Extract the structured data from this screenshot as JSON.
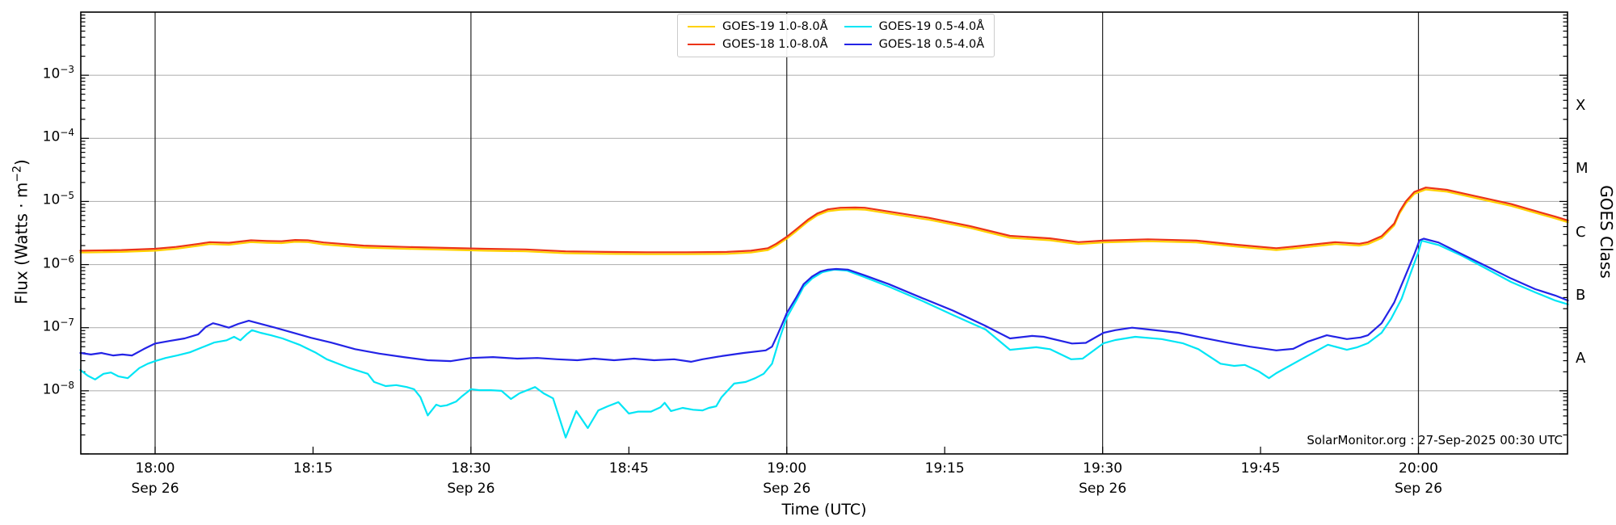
{
  "labels": {
    "y_axis": {
      "pre": "Flux (Watts · m",
      "sup": "−2",
      "post": ")"
    },
    "x_axis": "Time (UTC)",
    "right_axis": "GOES Class",
    "watermark": "SolarMonitor.org : 27-Sep-2025 00:30 UTC"
  },
  "colors": {
    "goes19_long": "#ffd100",
    "goes18_long": "#ec3317",
    "goes19_short": "#00e5f5",
    "goes18_short": "#2323e6",
    "h_grid": "#b5b5b5",
    "v_grid": "#222222",
    "frame": "#000000"
  },
  "legend": {
    "items": [
      {
        "label": "GOES-19 1.0-8.0Å",
        "series": "goes19_long"
      },
      {
        "label": "GOES-18 1.0-8.0Å",
        "series": "goes18_long"
      },
      {
        "label": "GOES-19 0.5-4.0Å",
        "series": "goes19_short"
      },
      {
        "label": "GOES-18 0.5-4.0Å",
        "series": "goes18_short"
      }
    ]
  },
  "axes": {
    "y_tick_exponents": [
      -3,
      -4,
      -5,
      -6,
      -7,
      -8
    ],
    "y_log_range": [
      -2,
      -9
    ],
    "x_range_minutes_from_1800": [
      -7.06,
      134.16
    ],
    "x_ticks": [
      {
        "t": 0,
        "label": "18:00",
        "date": "Sep 26"
      },
      {
        "t": 15,
        "label": "18:15"
      },
      {
        "t": 30,
        "label": "18:30",
        "date": "Sep 26"
      },
      {
        "t": 45,
        "label": "18:45"
      },
      {
        "t": 60,
        "label": "19:00",
        "date": "Sep 26"
      },
      {
        "t": 75,
        "label": "19:15"
      },
      {
        "t": 90,
        "label": "19:30",
        "date": "Sep 26"
      },
      {
        "t": 105,
        "label": "19:45"
      },
      {
        "t": 120,
        "label": "20:00",
        "date": "Sep 26"
      }
    ],
    "goes_class_letters": [
      {
        "letter": "X",
        "log_center": -3.5
      },
      {
        "letter": "M",
        "log_center": -4.5
      },
      {
        "letter": "C",
        "log_center": -5.5
      },
      {
        "letter": "B",
        "log_center": -6.5
      },
      {
        "letter": "A",
        "log_center": -7.5
      }
    ]
  },
  "chart_data": {
    "type": "line",
    "title": "",
    "xlabel": "Time (UTC)",
    "ylabel": "Flux (Watts · m^-2)",
    "x_unit": "minutes after 18:00 UTC, Sep 26 2025",
    "y_unit": "log10 of X-ray flux (W m^-2)",
    "x_range": [
      -7.06,
      134.16
    ],
    "y_log_range": [
      -2,
      -9
    ],
    "grid": {
      "horizontal": "per decade",
      "vertical": "every 30 min"
    },
    "legend_position": "upper center",
    "series": [
      {
        "name": "GOES-19 1.0-8.0Å",
        "color_key": "goes19_long",
        "follows": "GOES-18 1.0-8.0Å",
        "offset_log": -0.03
      },
      {
        "name": "GOES-18 1.0-8.0Å",
        "color_key": "goes18_long",
        "points": [
          [
            -7.1,
            -5.78
          ],
          [
            -3.2,
            -5.77
          ],
          [
            0,
            -5.75
          ],
          [
            2,
            -5.72
          ],
          [
            4.2,
            -5.67
          ],
          [
            5.2,
            -5.645
          ],
          [
            7,
            -5.655
          ],
          [
            9.1,
            -5.615
          ],
          [
            10.6,
            -5.625
          ],
          [
            12,
            -5.63
          ],
          [
            13.3,
            -5.61
          ],
          [
            14.5,
            -5.615
          ],
          [
            16,
            -5.65
          ],
          [
            19.8,
            -5.7
          ],
          [
            23.6,
            -5.72
          ],
          [
            27.5,
            -5.735
          ],
          [
            31.3,
            -5.75
          ],
          [
            35.2,
            -5.76
          ],
          [
            39,
            -5.79
          ],
          [
            42.8,
            -5.8
          ],
          [
            46.7,
            -5.805
          ],
          [
            50.5,
            -5.805
          ],
          [
            54.3,
            -5.8
          ],
          [
            56.6,
            -5.78
          ],
          [
            58.2,
            -5.74
          ],
          [
            59,
            -5.67
          ],
          [
            60,
            -5.56
          ],
          [
            60.9,
            -5.44
          ],
          [
            62,
            -5.29
          ],
          [
            62.9,
            -5.19
          ],
          [
            63.9,
            -5.125
          ],
          [
            65.1,
            -5.1
          ],
          [
            66.5,
            -5.095
          ],
          [
            67.4,
            -5.1
          ],
          [
            69.7,
            -5.16
          ],
          [
            73.5,
            -5.26
          ],
          [
            77.4,
            -5.39
          ],
          [
            81.2,
            -5.545
          ],
          [
            85,
            -5.585
          ],
          [
            87.7,
            -5.645
          ],
          [
            90.1,
            -5.62
          ],
          [
            94.3,
            -5.6
          ],
          [
            98.9,
            -5.62
          ],
          [
            102.7,
            -5.685
          ],
          [
            106.5,
            -5.74
          ],
          [
            108.1,
            -5.715
          ],
          [
            112.1,
            -5.645
          ],
          [
            114.4,
            -5.67
          ],
          [
            115.2,
            -5.645
          ],
          [
            116.5,
            -5.55
          ],
          [
            117.7,
            -5.35
          ],
          [
            118.2,
            -5.16
          ],
          [
            118.8,
            -5.0
          ],
          [
            119.6,
            -4.85
          ],
          [
            120.7,
            -4.78
          ],
          [
            122.7,
            -4.815
          ],
          [
            124.2,
            -4.87
          ],
          [
            126.5,
            -4.955
          ],
          [
            128.8,
            -5.04
          ],
          [
            131.1,
            -5.15
          ],
          [
            133,
            -5.24
          ],
          [
            134.2,
            -5.3
          ]
        ]
      },
      {
        "name": "GOES-19 0.5-4.0Å",
        "color_key": "goes19_short",
        "points": [
          [
            -7.1,
            -7.67
          ],
          [
            -6.4,
            -7.76
          ],
          [
            -5.7,
            -7.82
          ],
          [
            -4.9,
            -7.73
          ],
          [
            -4.2,
            -7.71
          ],
          [
            -3.5,
            -7.77
          ],
          [
            -2.6,
            -7.8
          ],
          [
            -1.5,
            -7.64
          ],
          [
            -0.7,
            -7.57
          ],
          [
            0,
            -7.53
          ],
          [
            1,
            -7.48
          ],
          [
            2.1,
            -7.44
          ],
          [
            3.3,
            -7.39
          ],
          [
            4.5,
            -7.31
          ],
          [
            5.6,
            -7.235
          ],
          [
            6.8,
            -7.2
          ],
          [
            7.5,
            -7.145
          ],
          [
            8.1,
            -7.2
          ],
          [
            8.7,
            -7.105
          ],
          [
            9.2,
            -7.04
          ],
          [
            10,
            -7.08
          ],
          [
            11,
            -7.12
          ],
          [
            12.1,
            -7.17
          ],
          [
            13.7,
            -7.27
          ],
          [
            15.2,
            -7.39
          ],
          [
            16.3,
            -7.5
          ],
          [
            18.3,
            -7.63
          ],
          [
            20.2,
            -7.73
          ],
          [
            20.8,
            -7.86
          ],
          [
            21.9,
            -7.925
          ],
          [
            22.9,
            -7.91
          ],
          [
            23.9,
            -7.94
          ],
          [
            24.6,
            -7.975
          ],
          [
            25.2,
            -8.1
          ],
          [
            25.9,
            -8.39
          ],
          [
            26.7,
            -8.22
          ],
          [
            27.1,
            -8.245
          ],
          [
            27.7,
            -8.23
          ],
          [
            28.6,
            -8.17
          ],
          [
            29.2,
            -8.08
          ],
          [
            30,
            -7.975
          ],
          [
            30.8,
            -7.99
          ],
          [
            31.9,
            -7.99
          ],
          [
            32.9,
            -8.0
          ],
          [
            33.8,
            -8.13
          ],
          [
            34.6,
            -8.04
          ],
          [
            36.1,
            -7.94
          ],
          [
            36.9,
            -8.04
          ],
          [
            37.8,
            -8.12
          ],
          [
            39,
            -8.74
          ],
          [
            40,
            -8.32
          ],
          [
            41.1,
            -8.59
          ],
          [
            42.1,
            -8.31
          ],
          [
            43,
            -8.245
          ],
          [
            44,
            -8.18
          ],
          [
            45,
            -8.36
          ],
          [
            45.9,
            -8.33
          ],
          [
            47.1,
            -8.33
          ],
          [
            48,
            -8.26
          ],
          [
            48.4,
            -8.19
          ],
          [
            49,
            -8.32
          ],
          [
            50.1,
            -8.27
          ],
          [
            51.1,
            -8.3
          ],
          [
            52,
            -8.31
          ],
          [
            52.6,
            -8.27
          ],
          [
            53.3,
            -8.245
          ],
          [
            53.8,
            -8.1
          ],
          [
            55,
            -7.885
          ],
          [
            56.1,
            -7.86
          ],
          [
            57,
            -7.8
          ],
          [
            57.8,
            -7.73
          ],
          [
            58.6,
            -7.57
          ],
          [
            59.3,
            -7.18
          ],
          [
            60,
            -6.84
          ],
          [
            60.9,
            -6.57
          ],
          [
            61.6,
            -6.35
          ],
          [
            62.4,
            -6.22
          ],
          [
            63.4,
            -6.12
          ],
          [
            64.5,
            -6.08
          ],
          [
            65.7,
            -6.095
          ],
          [
            67.4,
            -6.2
          ],
          [
            69.7,
            -6.35
          ],
          [
            72.8,
            -6.57
          ],
          [
            75.8,
            -6.8
          ],
          [
            78.9,
            -7.03
          ],
          [
            81.2,
            -7.35
          ],
          [
            83.7,
            -7.31
          ],
          [
            85,
            -7.34
          ],
          [
            87,
            -7.5
          ],
          [
            88.1,
            -7.49
          ],
          [
            90.1,
            -7.245
          ],
          [
            91.2,
            -7.195
          ],
          [
            93.1,
            -7.145
          ],
          [
            95.6,
            -7.18
          ],
          [
            97.6,
            -7.245
          ],
          [
            99.1,
            -7.34
          ],
          [
            101.2,
            -7.57
          ],
          [
            102.5,
            -7.605
          ],
          [
            103.5,
            -7.59
          ],
          [
            104.8,
            -7.69
          ],
          [
            105.8,
            -7.8
          ],
          [
            106.5,
            -7.72
          ],
          [
            109.1,
            -7.48
          ],
          [
            111.4,
            -7.27
          ],
          [
            113.2,
            -7.35
          ],
          [
            114.2,
            -7.31
          ],
          [
            115.2,
            -7.245
          ],
          [
            116.5,
            -7.08
          ],
          [
            117.4,
            -6.86
          ],
          [
            118.4,
            -6.54
          ],
          [
            119.2,
            -6.16
          ],
          [
            120,
            -5.8
          ],
          [
            120.3,
            -5.62
          ],
          [
            121.9,
            -5.69
          ],
          [
            124.2,
            -5.865
          ],
          [
            126.5,
            -6.07
          ],
          [
            128.8,
            -6.275
          ],
          [
            131.1,
            -6.44
          ],
          [
            133,
            -6.57
          ],
          [
            134.2,
            -6.63
          ]
        ]
      },
      {
        "name": "GOES-18 0.5-4.0Å",
        "color_key": "goes18_short",
        "points": [
          [
            -7.1,
            -7.4
          ],
          [
            -6.1,
            -7.425
          ],
          [
            -5.1,
            -7.4
          ],
          [
            -4,
            -7.44
          ],
          [
            -3.1,
            -7.425
          ],
          [
            -2.2,
            -7.44
          ],
          [
            -1.1,
            -7.34
          ],
          [
            0,
            -7.25
          ],
          [
            1.4,
            -7.21
          ],
          [
            2.8,
            -7.17
          ],
          [
            4.1,
            -7.105
          ],
          [
            4.8,
            -6.99
          ],
          [
            5.5,
            -6.93
          ],
          [
            6,
            -6.95
          ],
          [
            7,
            -7.0
          ],
          [
            7.9,
            -6.94
          ],
          [
            8.9,
            -6.89
          ],
          [
            9.8,
            -6.93
          ],
          [
            11.4,
            -7.0
          ],
          [
            12.9,
            -7.07
          ],
          [
            14.8,
            -7.16
          ],
          [
            16.7,
            -7.235
          ],
          [
            19,
            -7.34
          ],
          [
            21.3,
            -7.41
          ],
          [
            23.6,
            -7.465
          ],
          [
            25.9,
            -7.515
          ],
          [
            28.1,
            -7.53
          ],
          [
            30,
            -7.48
          ],
          [
            32.1,
            -7.465
          ],
          [
            34.4,
            -7.49
          ],
          [
            36.3,
            -7.48
          ],
          [
            38.2,
            -7.5
          ],
          [
            40.1,
            -7.515
          ],
          [
            41.7,
            -7.49
          ],
          [
            43.6,
            -7.515
          ],
          [
            45.5,
            -7.49
          ],
          [
            47.4,
            -7.515
          ],
          [
            49.3,
            -7.5
          ],
          [
            50.9,
            -7.54
          ],
          [
            52,
            -7.5
          ],
          [
            53.8,
            -7.45
          ],
          [
            55.9,
            -7.4
          ],
          [
            58,
            -7.36
          ],
          [
            58.6,
            -7.3
          ],
          [
            59.1,
            -7.12
          ],
          [
            59.6,
            -6.93
          ],
          [
            60,
            -6.77
          ],
          [
            60.9,
            -6.52
          ],
          [
            61.6,
            -6.31
          ],
          [
            62.4,
            -6.19
          ],
          [
            63.2,
            -6.11
          ],
          [
            63.9,
            -6.08
          ],
          [
            64.7,
            -6.07
          ],
          [
            65.8,
            -6.08
          ],
          [
            67.4,
            -6.17
          ],
          [
            69.7,
            -6.31
          ],
          [
            72.7,
            -6.52
          ],
          [
            75.8,
            -6.73
          ],
          [
            78.8,
            -6.965
          ],
          [
            81.2,
            -7.17
          ],
          [
            83.3,
            -7.13
          ],
          [
            84.4,
            -7.145
          ],
          [
            87.1,
            -7.25
          ],
          [
            88.4,
            -7.24
          ],
          [
            90.1,
            -7.08
          ],
          [
            91.2,
            -7.04
          ],
          [
            92.8,
            -7.0
          ],
          [
            94.5,
            -7.03
          ],
          [
            97.2,
            -7.08
          ],
          [
            99.5,
            -7.16
          ],
          [
            101.8,
            -7.235
          ],
          [
            104,
            -7.3
          ],
          [
            106.5,
            -7.36
          ],
          [
            108.1,
            -7.335
          ],
          [
            109.5,
            -7.22
          ],
          [
            111.3,
            -7.12
          ],
          [
            113.2,
            -7.18
          ],
          [
            114.5,
            -7.155
          ],
          [
            115.2,
            -7.12
          ],
          [
            116.5,
            -6.93
          ],
          [
            117.7,
            -6.6
          ],
          [
            118.8,
            -6.16
          ],
          [
            119.6,
            -5.84
          ],
          [
            120.1,
            -5.615
          ],
          [
            120.5,
            -5.59
          ],
          [
            121.9,
            -5.65
          ],
          [
            124.2,
            -5.84
          ],
          [
            126.5,
            -6.03
          ],
          [
            128.8,
            -6.22
          ],
          [
            131.1,
            -6.39
          ],
          [
            133,
            -6.49
          ],
          [
            134.2,
            -6.57
          ]
        ]
      }
    ]
  }
}
